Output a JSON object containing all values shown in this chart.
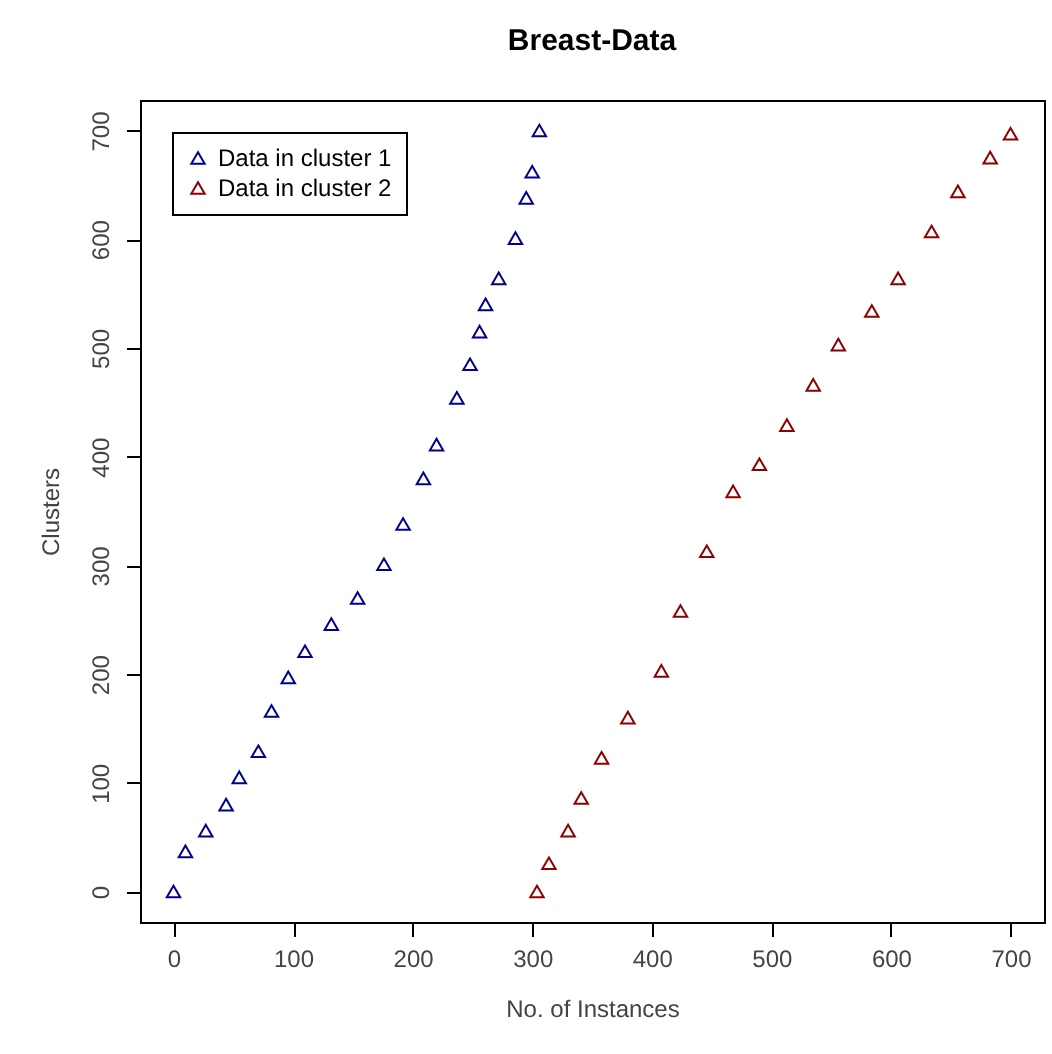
{
  "chart_data": {
    "type": "scatter",
    "title": "Breast-Data",
    "xlabel": "No. of Instances",
    "ylabel": "Clusters",
    "xlim": [
      -28,
      728
    ],
    "ylim": [
      -28,
      728
    ],
    "xticks": [
      0,
      100,
      200,
      300,
      400,
      500,
      600,
      700
    ],
    "yticks": [
      0,
      100,
      200,
      300,
      400,
      500,
      600,
      700
    ],
    "legend": "top left",
    "marker": "triangle",
    "series": [
      {
        "name": "Data in cluster 1",
        "color": "#00008b",
        "x": [
          0,
          10,
          27,
          44,
          55,
          71,
          82,
          96,
          110,
          132,
          154,
          176,
          192,
          209,
          220,
          237,
          248,
          256,
          261,
          272,
          286,
          295,
          300,
          306
        ],
        "values": [
          0,
          37,
          56,
          80,
          105,
          129,
          166,
          197,
          221,
          246,
          270,
          301,
          338,
          380,
          411,
          454,
          485,
          515,
          540,
          564,
          601,
          638,
          662,
          700
        ]
      },
      {
        "name": "Data in cluster 2",
        "color": "#8b0000",
        "x": [
          304,
          314,
          330,
          341,
          358,
          380,
          408,
          424,
          446,
          468,
          490,
          513,
          535,
          556,
          584,
          606,
          634,
          656,
          683,
          700
        ],
        "values": [
          0,
          26,
          56,
          86,
          123,
          160,
          203,
          258,
          313,
          368,
          393,
          429,
          466,
          503,
          534,
          564,
          607,
          644,
          675,
          697
        ]
      }
    ]
  }
}
